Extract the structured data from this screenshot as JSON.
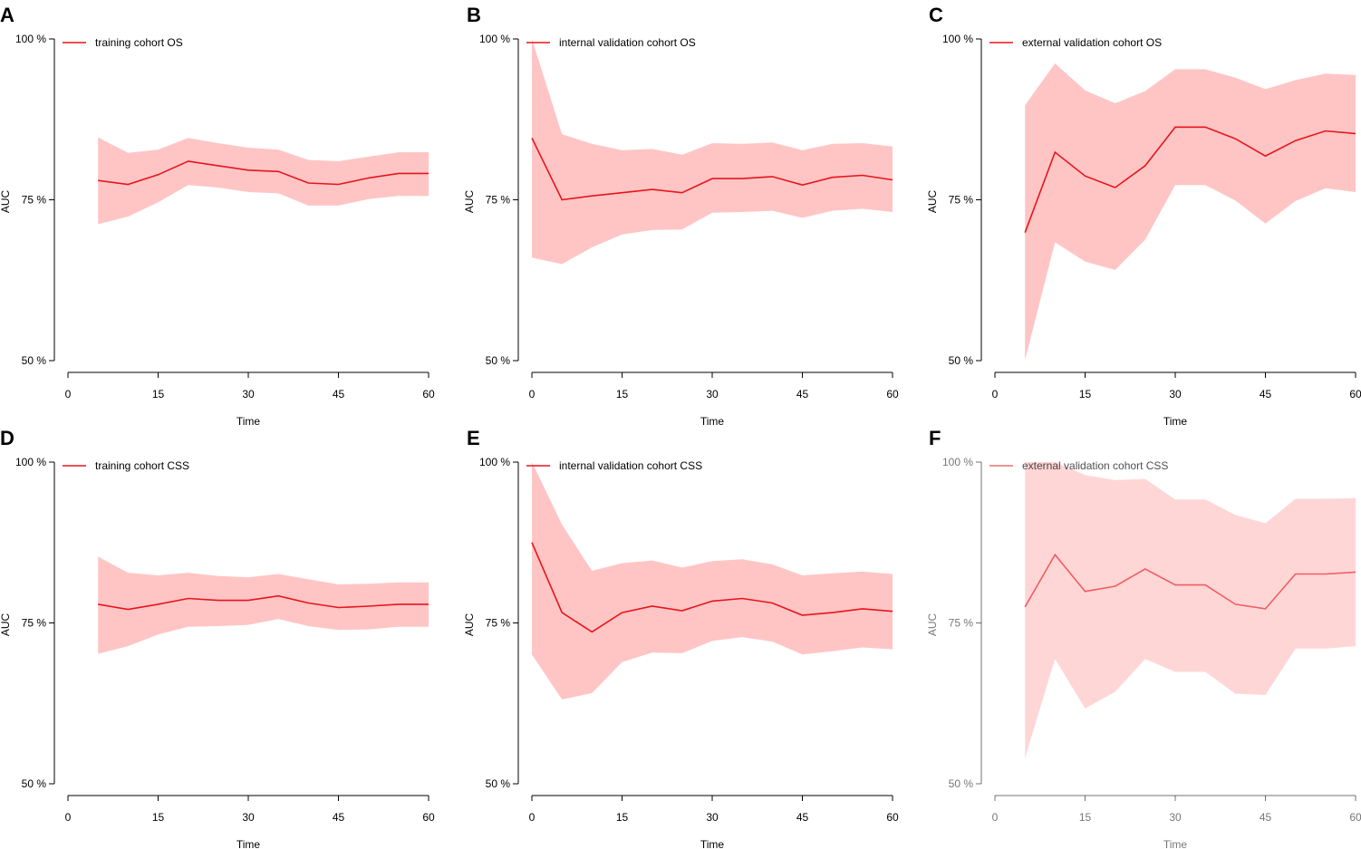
{
  "figure": {
    "line_color": "#e8141b",
    "band_color": "#ffc5c5",
    "axis_color": "#000000"
  },
  "chart_data": [
    {
      "panel": "A",
      "type": "line",
      "legend": "training cohort OS",
      "xlabel": "Time",
      "ylabel": "AUC",
      "xlim": [
        0,
        60
      ],
      "ylim": [
        50,
        100
      ],
      "xticks": [
        "0",
        "15",
        "30",
        "45",
        "60"
      ],
      "yticks": [
        "50 %",
        "75 %",
        "100 %"
      ],
      "x": [
        5,
        10,
        15,
        20,
        25,
        30,
        35,
        40,
        45,
        50,
        55,
        60
      ],
      "auc": [
        78.0,
        77.4,
        78.9,
        81.0,
        80.3,
        79.6,
        79.4,
        77.6,
        77.4,
        78.4,
        79.1,
        79.1
      ],
      "lower": [
        71.2,
        72.4,
        74.6,
        77.3,
        76.9,
        76.2,
        76.0,
        74.1,
        74.1,
        75.1,
        75.6,
        75.6
      ],
      "upper": [
        84.7,
        82.3,
        82.8,
        84.6,
        83.8,
        83.1,
        82.8,
        81.2,
        81.0,
        81.7,
        82.4,
        82.4
      ]
    },
    {
      "panel": "B",
      "type": "line",
      "legend": "internal validation cohort OS",
      "xlabel": "Time",
      "ylabel": "AUC",
      "xlim": [
        0,
        60
      ],
      "ylim": [
        50,
        100
      ],
      "xticks": [
        "0",
        "15",
        "30",
        "45",
        "60"
      ],
      "yticks": [
        "50 %",
        "75 %",
        "100 %"
      ],
      "x": [
        0,
        5,
        10,
        15,
        20,
        25,
        30,
        35,
        40,
        45,
        50,
        55,
        60
      ],
      "auc": [
        84.6,
        75.0,
        75.6,
        76.1,
        76.6,
        76.1,
        78.3,
        78.3,
        78.6,
        77.3,
        78.5,
        78.8,
        78.1
      ],
      "lower": [
        66.0,
        65.0,
        67.6,
        69.6,
        70.3,
        70.4,
        73.0,
        73.1,
        73.3,
        72.2,
        73.3,
        73.6,
        73.1
      ],
      "upper": [
        100.0,
        85.2,
        83.7,
        82.7,
        82.9,
        82.0,
        83.8,
        83.7,
        83.9,
        82.7,
        83.7,
        83.8,
        83.3
      ]
    },
    {
      "panel": "C",
      "type": "line",
      "legend": "external validation cohort OS",
      "xlabel": "Time",
      "ylabel": "AUC",
      "xlim": [
        0,
        60
      ],
      "ylim": [
        50,
        100
      ],
      "xticks": [
        "0",
        "15",
        "30",
        "45",
        "60"
      ],
      "yticks": [
        "50 %",
        "75 %",
        "100 %"
      ],
      "x": [
        5,
        10,
        15,
        20,
        25,
        30,
        35,
        40,
        45,
        50,
        55,
        60
      ],
      "auc": [
        69.9,
        82.4,
        78.7,
        76.9,
        80.3,
        86.3,
        86.3,
        84.5,
        81.8,
        84.2,
        85.7,
        85.3
      ],
      "lower": [
        50.1,
        68.4,
        65.4,
        64.1,
        68.8,
        77.3,
        77.3,
        74.9,
        71.3,
        74.8,
        76.8,
        76.2
      ],
      "upper": [
        89.7,
        96.2,
        92.0,
        90.0,
        91.9,
        95.3,
        95.3,
        94.0,
        92.2,
        93.6,
        94.6,
        94.4
      ]
    },
    {
      "panel": "D",
      "type": "line",
      "legend": "training cohort CSS",
      "xlabel": "Time",
      "ylabel": "AUC",
      "xlim": [
        0,
        60
      ],
      "ylim": [
        50,
        100
      ],
      "xticks": [
        "0",
        "15",
        "30",
        "45",
        "60"
      ],
      "yticks": [
        "50 %",
        "75 %",
        "100 %"
      ],
      "x": [
        5,
        10,
        15,
        20,
        25,
        30,
        35,
        40,
        45,
        50,
        55,
        60
      ],
      "auc": [
        77.9,
        77.1,
        77.9,
        78.8,
        78.5,
        78.5,
        79.2,
        78.1,
        77.4,
        77.6,
        77.9,
        77.9
      ],
      "lower": [
        70.2,
        71.4,
        73.2,
        74.4,
        74.5,
        74.7,
        75.6,
        74.5,
        73.9,
        74.0,
        74.4,
        74.4
      ],
      "upper": [
        85.3,
        82.8,
        82.4,
        82.8,
        82.3,
        82.1,
        82.6,
        81.8,
        81.0,
        81.1,
        81.3,
        81.3
      ]
    },
    {
      "panel": "E",
      "type": "line",
      "legend": "internal validation cohort  CSS",
      "xlabel": "Time",
      "ylabel": "AUC",
      "xlim": [
        0,
        60
      ],
      "ylim": [
        50,
        100
      ],
      "xticks": [
        "0",
        "15",
        "30",
        "45",
        "60"
      ],
      "yticks": [
        "50 %",
        "75 %",
        "100 %"
      ],
      "x": [
        0,
        5,
        10,
        15,
        20,
        25,
        30,
        35,
        40,
        45,
        50,
        55,
        60
      ],
      "auc": [
        87.5,
        76.6,
        73.6,
        76.6,
        77.6,
        76.9,
        78.4,
        78.8,
        78.1,
        76.2,
        76.6,
        77.2,
        76.8
      ],
      "lower": [
        70.1,
        63.1,
        64.1,
        68.9,
        70.4,
        70.3,
        72.2,
        72.8,
        72.1,
        70.1,
        70.6,
        71.2,
        70.9
      ],
      "upper": [
        100.0,
        90.3,
        83.1,
        84.3,
        84.7,
        83.6,
        84.6,
        84.9,
        84.1,
        82.4,
        82.7,
        83.0,
        82.6
      ]
    },
    {
      "panel": "F",
      "type": "line",
      "legend": "external validation cohort CSS",
      "xlabel": "Time",
      "ylabel": "AUC",
      "xlim": [
        0,
        60
      ],
      "ylim": [
        50,
        100
      ],
      "xticks": [
        "0",
        "15",
        "30",
        "45",
        "60"
      ],
      "yticks": [
        "50 %",
        "75 %",
        "100 %"
      ],
      "x": [
        5,
        10,
        15,
        20,
        25,
        30,
        35,
        40,
        45,
        50,
        55,
        60
      ],
      "auc": [
        77.5,
        85.6,
        79.9,
        80.7,
        83.4,
        80.9,
        80.9,
        77.9,
        77.2,
        82.6,
        82.6,
        82.9
      ],
      "lower": [
        54.0,
        69.4,
        61.7,
        64.3,
        69.4,
        67.4,
        67.4,
        64.0,
        63.8,
        71.0,
        71.0,
        71.4
      ],
      "upper": [
        100.0,
        100.0,
        98.0,
        97.2,
        97.4,
        94.2,
        94.2,
        91.8,
        90.5,
        94.3,
        94.3,
        94.4
      ],
      "faded": true
    }
  ]
}
